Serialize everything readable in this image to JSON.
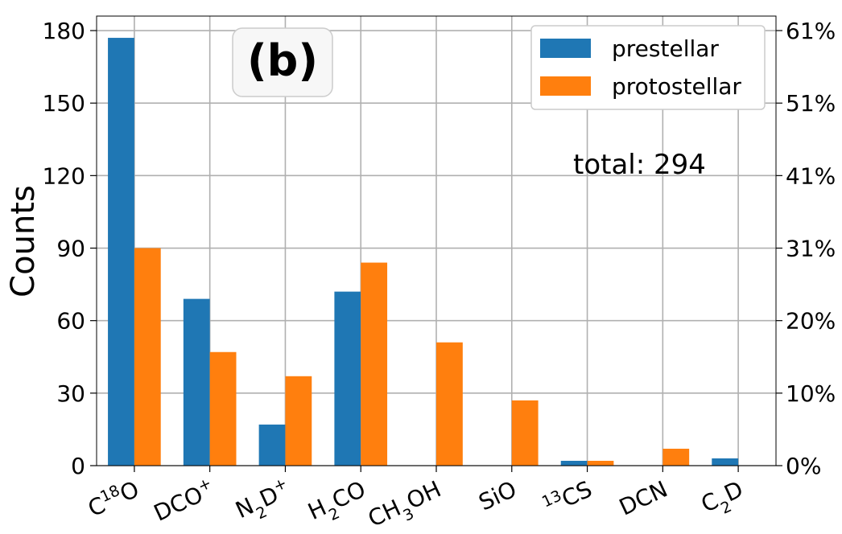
{
  "chart_data": {
    "type": "bar",
    "panel_label": "(b)",
    "categories": [
      {
        "base": "C",
        "sup": "18",
        "rest": "O"
      },
      {
        "base": "DCO",
        "sup": "+",
        "rest": ""
      },
      {
        "base": "N",
        "sub": "2",
        "rest": "D",
        "sup2": "+"
      },
      {
        "base": "H",
        "sub": "2",
        "rest": "CO"
      },
      {
        "base": "CH",
        "sub": "3",
        "rest": "OH"
      },
      {
        "base": "SiO"
      },
      {
        "pre_sup": "13",
        "base": "CS"
      },
      {
        "base": "DCN"
      },
      {
        "base": "C",
        "sub": "2",
        "rest": "D"
      }
    ],
    "series": [
      {
        "name": "prestellar",
        "color": "#1f77b4",
        "values": [
          177,
          69,
          17,
          72,
          0,
          0,
          2,
          0,
          3
        ]
      },
      {
        "name": "protostellar",
        "color": "#ff7f0e",
        "values": [
          90,
          47,
          37,
          84,
          51,
          27,
          2,
          7,
          0
        ]
      }
    ],
    "ylabel": "Counts",
    "ylim": [
      0,
      186
    ],
    "yticks": [
      0,
      30,
      60,
      90,
      120,
      150,
      180
    ],
    "right_ticks": [
      0,
      30,
      60,
      90,
      120,
      150,
      180
    ],
    "right_tick_labels": [
      "0%",
      "10%",
      "20%",
      "31%",
      "41%",
      "51%",
      "61%"
    ],
    "annotation": "total: 294",
    "grid": true,
    "legend": "top-right"
  }
}
